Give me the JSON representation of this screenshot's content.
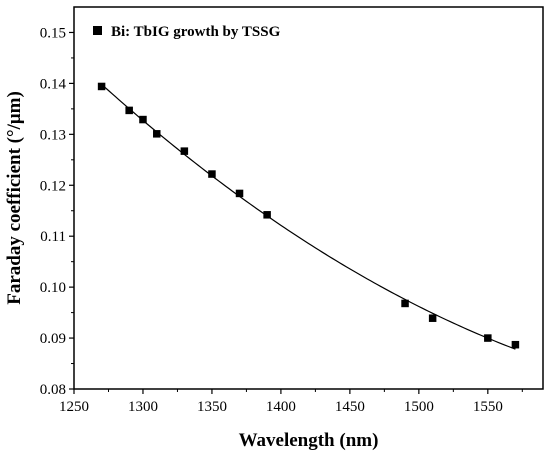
{
  "chart_data": {
    "type": "scatter",
    "xlabel": "Wavelength (nm)",
    "ylabel": "Faraday coefficient (°/μm)",
    "xlim": [
      1250,
      1590
    ],
    "ylim": [
      0.08,
      0.155
    ],
    "xticks": [
      1250,
      1300,
      1350,
      1400,
      1450,
      1500,
      1550
    ],
    "yticks": [
      0.08,
      0.09,
      0.1,
      0.11,
      0.12,
      0.13,
      0.14,
      0.15
    ],
    "xtick_labels": [
      "1250",
      "1300",
      "1350",
      "1400",
      "1450",
      "1500",
      "1550"
    ],
    "ytick_labels": [
      "0.08",
      "0.09",
      "0.10",
      "0.11",
      "0.12",
      "0.13",
      "0.14",
      "0.15"
    ],
    "grid": false,
    "legend_position": "top-left",
    "marker_color": "#000000",
    "series": [
      {
        "name": "Bi: TbIG growth by TSSG",
        "marker": "square",
        "fit_line": true,
        "x": [
          1270,
          1290,
          1300,
          1310,
          1330,
          1350,
          1370,
          1390,
          1490,
          1510,
          1550,
          1570
        ],
        "y": [
          0.1394,
          0.1347,
          0.1329,
          0.1301,
          0.1267,
          0.1222,
          0.1184,
          0.1142,
          0.0968,
          0.0939,
          0.09,
          0.0887
        ]
      }
    ]
  }
}
